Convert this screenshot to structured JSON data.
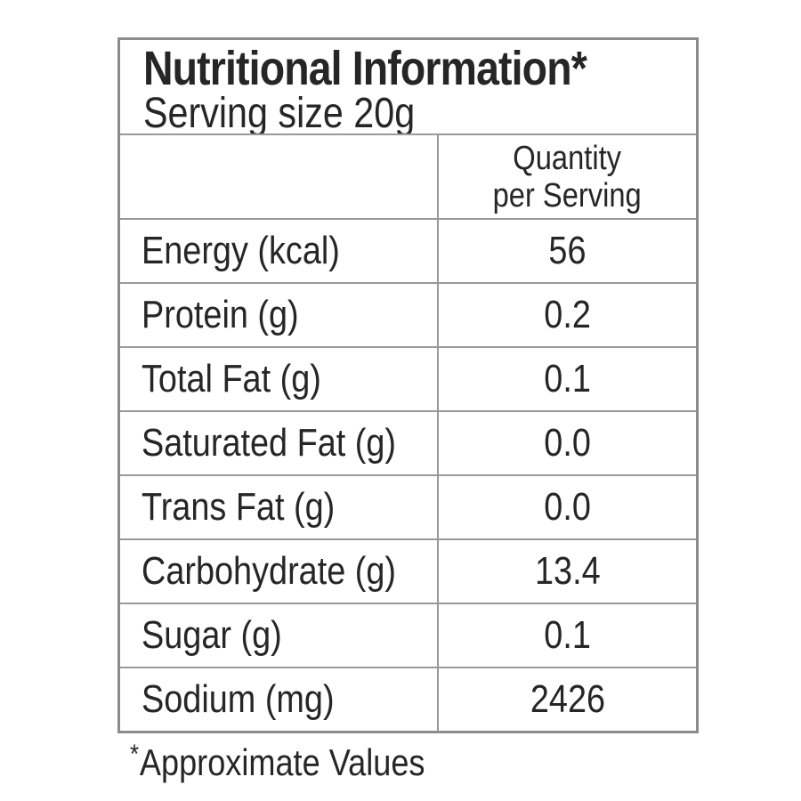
{
  "header": {
    "title": "Nutritional Information*",
    "serving_size": "Serving size 20g"
  },
  "column_header": {
    "line1": "Quantity",
    "line2": "per Serving"
  },
  "rows": [
    {
      "label": "Energy (kcal)",
      "value": "56"
    },
    {
      "label": "Protein (g)",
      "value": "0.2"
    },
    {
      "label": "Total Fat (g)",
      "value": "0.1"
    },
    {
      "label": "Saturated Fat (g)",
      "value": "0.0"
    },
    {
      "label": "Trans Fat (g)",
      "value": "0.0"
    },
    {
      "label": "Carbohydrate (g)",
      "value": "13.4"
    },
    {
      "label": "Sugar (g)",
      "value": "0.1"
    },
    {
      "label": "Sodium (mg)",
      "value": "2426"
    }
  ],
  "footnote": {
    "marker": "*",
    "text": "Approximate Values"
  },
  "colors": {
    "outer_border": "#8b8b8b",
    "grid_line": "#999999",
    "text": "#262626",
    "background": "#ffffff"
  }
}
